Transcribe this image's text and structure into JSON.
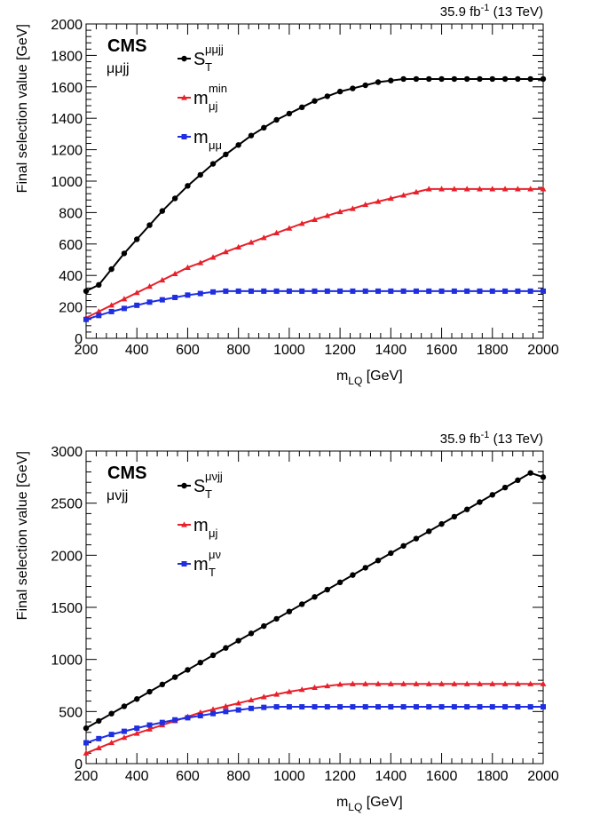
{
  "chart_data": [
    {
      "type": "line",
      "lumi_label": "35.9 fb",
      "lumi_exp": "-1",
      "lumi_energy": "(13 TeV)",
      "experiment": "CMS",
      "channel": "μμjj",
      "xlabel_main": "m",
      "xlabel_sub": "LQ",
      "xlabel_unit": "[GeV]",
      "ylabel": "Final selection value [GeV]",
      "xlim": [
        200,
        2000
      ],
      "ylim": [
        0,
        2000
      ],
      "x_ticks": [
        "200",
        "400",
        "600",
        "800",
        "1000",
        "1200",
        "1400",
        "1600",
        "1800",
        "2000"
      ],
      "y_ticks": [
        "0",
        "200",
        "400",
        "600",
        "800",
        "1000",
        "1200",
        "1400",
        "1600",
        "1800",
        "2000"
      ],
      "x": [
        200,
        250,
        300,
        350,
        400,
        450,
        500,
        550,
        600,
        650,
        700,
        750,
        800,
        850,
        900,
        950,
        1000,
        1050,
        1100,
        1150,
        1200,
        1250,
        1300,
        1350,
        1400,
        1450,
        1500,
        1550,
        1600,
        1650,
        1700,
        1750,
        1800,
        1850,
        1900,
        1950,
        2000
      ],
      "series": [
        {
          "name_main": "S",
          "name_sub": "T",
          "name_sup": "μμjj",
          "color": "#000000",
          "marker": "circle",
          "values": [
            300,
            340,
            440,
            540,
            630,
            720,
            810,
            890,
            970,
            1040,
            1110,
            1170,
            1230,
            1290,
            1340,
            1390,
            1430,
            1470,
            1510,
            1540,
            1570,
            1590,
            1610,
            1630,
            1640,
            1650,
            1650,
            1650,
            1650,
            1650,
            1650,
            1650,
            1650,
            1650,
            1650,
            1650,
            1650
          ]
        },
        {
          "name_main": "m",
          "name_sub": "μj",
          "name_sup": "min",
          "color": "#e8202a",
          "marker": "triangle",
          "values": [
            130,
            170,
            210,
            250,
            290,
            330,
            370,
            410,
            450,
            480,
            515,
            550,
            580,
            610,
            640,
            670,
            700,
            730,
            755,
            780,
            805,
            825,
            850,
            870,
            890,
            910,
            930,
            950,
            950,
            950,
            950,
            950,
            950,
            950,
            950,
            950,
            950
          ]
        },
        {
          "name_main": "m",
          "name_sub": "μμ",
          "name_sup": "",
          "color": "#1f2fe0",
          "marker": "square",
          "values": [
            120,
            145,
            170,
            190,
            210,
            230,
            245,
            260,
            275,
            285,
            295,
            300,
            300,
            300,
            300,
            300,
            300,
            300,
            300,
            300,
            300,
            300,
            300,
            300,
            300,
            300,
            300,
            300,
            300,
            300,
            300,
            300,
            300,
            300,
            300,
            300,
            300
          ]
        }
      ]
    },
    {
      "type": "line",
      "lumi_label": "35.9 fb",
      "lumi_exp": "-1",
      "lumi_energy": "(13 TeV)",
      "experiment": "CMS",
      "channel": "μνjj",
      "xlabel_main": "m",
      "xlabel_sub": "LQ",
      "xlabel_unit": "[GeV]",
      "ylabel": "Final selection value [GeV]",
      "xlim": [
        200,
        2000
      ],
      "ylim": [
        0,
        3000
      ],
      "x_ticks": [
        "200",
        "400",
        "600",
        "800",
        "1000",
        "1200",
        "1400",
        "1600",
        "1800",
        "2000"
      ],
      "y_ticks": [
        "0",
        "500",
        "1000",
        "1500",
        "2000",
        "2500",
        "3000"
      ],
      "x": [
        200,
        250,
        300,
        350,
        400,
        450,
        500,
        550,
        600,
        650,
        700,
        750,
        800,
        850,
        900,
        950,
        1000,
        1050,
        1100,
        1150,
        1200,
        1250,
        1300,
        1350,
        1400,
        1450,
        1500,
        1550,
        1600,
        1650,
        1700,
        1750,
        1800,
        1850,
        1900,
        1950,
        2000
      ],
      "series": [
        {
          "name_main": "S",
          "name_sub": "T",
          "name_sup": "μνjj",
          "color": "#000000",
          "marker": "circle",
          "values": [
            340,
            410,
            480,
            550,
            620,
            690,
            760,
            830,
            900,
            970,
            1040,
            1110,
            1180,
            1250,
            1320,
            1390,
            1460,
            1530,
            1600,
            1670,
            1740,
            1810,
            1880,
            1950,
            2020,
            2090,
            2160,
            2230,
            2300,
            2370,
            2440,
            2510,
            2580,
            2650,
            2720,
            2790,
            2750
          ]
        },
        {
          "name_main": "m",
          "name_sub": "μj",
          "name_sup": "",
          "color": "#e8202a",
          "marker": "triangle",
          "values": [
            100,
            150,
            200,
            250,
            290,
            330,
            370,
            410,
            450,
            490,
            520,
            550,
            580,
            610,
            640,
            665,
            690,
            710,
            730,
            745,
            760,
            765,
            765,
            765,
            765,
            765,
            765,
            765,
            765,
            765,
            765,
            765,
            765,
            765,
            765,
            765,
            765
          ]
        },
        {
          "name_main": "m",
          "name_sup": "μν",
          "name_sub": "T",
          "color": "#1f2fe0",
          "marker": "square",
          "values": [
            200,
            240,
            280,
            310,
            340,
            370,
            395,
            420,
            440,
            460,
            480,
            500,
            515,
            530,
            540,
            545,
            545,
            545,
            545,
            545,
            545,
            545,
            545,
            545,
            545,
            545,
            545,
            545,
            545,
            545,
            545,
            545,
            545,
            545,
            545,
            545,
            545
          ]
        }
      ]
    }
  ]
}
